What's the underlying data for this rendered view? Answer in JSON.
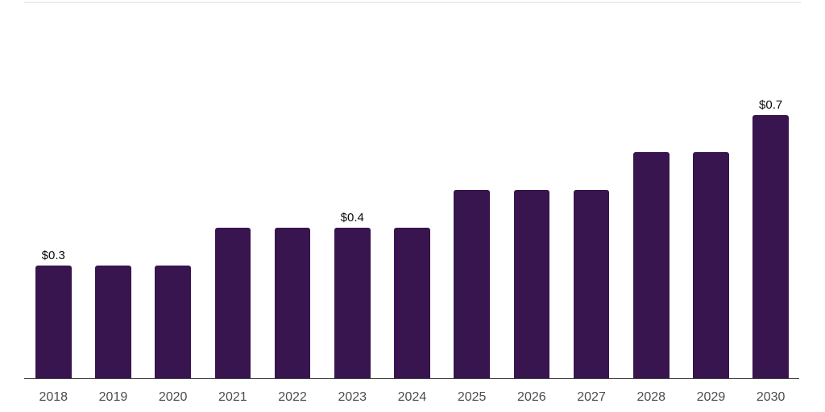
{
  "chart_data": {
    "type": "bar",
    "title": "",
    "xlabel": "",
    "ylabel": "",
    "categories": [
      "2018",
      "2019",
      "2020",
      "2021",
      "2022",
      "2023",
      "2024",
      "2025",
      "2026",
      "2027",
      "2028",
      "2029",
      "2030"
    ],
    "values": [
      0.3,
      0.3,
      0.3,
      0.4,
      0.4,
      0.4,
      0.4,
      0.5,
      0.5,
      0.5,
      0.6,
      0.6,
      0.7
    ],
    "visible_value_labels": [
      {
        "category": "2018",
        "text": "$0.3"
      },
      {
        "category": "2023",
        "text": "$0.4"
      },
      {
        "category": "2030",
        "text": "$0.7"
      }
    ],
    "ylim": [
      0,
      0.75
    ],
    "grid": false,
    "legend": false,
    "colors": {
      "bar": "#38154e",
      "axis_line": "#3e3e3e",
      "top_rule": "#ececec",
      "tick_label": "#4c4c4c",
      "value_label": "#0d0d0d",
      "background": "#ffffff"
    }
  }
}
